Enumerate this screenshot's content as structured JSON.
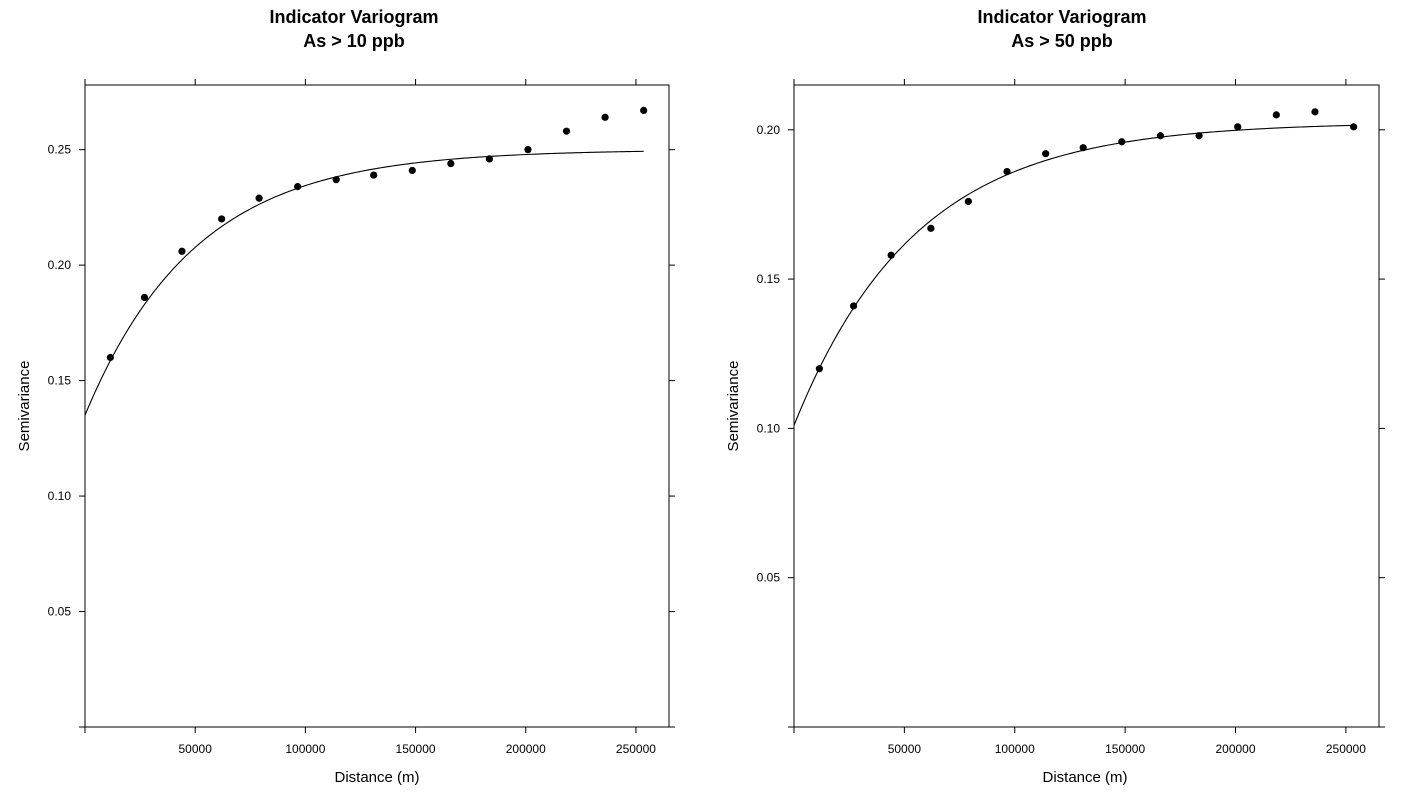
{
  "chart_data": [
    {
      "type": "scatter",
      "title": [
        "Indicator Variogram",
        "As > 10 ppb"
      ],
      "xlabel": "Distance (m)",
      "ylabel": "Semivariance",
      "xlim": [
        0,
        265000
      ],
      "ylim": [
        0,
        0.278
      ],
      "xticks": [
        50000,
        100000,
        150000,
        200000,
        250000
      ],
      "xtick_labels": [
        "50000",
        "100000",
        "150000",
        "200000",
        "250000"
      ],
      "yticks": [
        0.05,
        0.1,
        0.15,
        0.2,
        0.25
      ],
      "ytick_labels": [
        "0.05",
        "0.10",
        "0.15",
        "0.20",
        "0.25"
      ],
      "points": {
        "x": [
          11500,
          27000,
          44000,
          62000,
          79000,
          96500,
          114000,
          131000,
          148500,
          166000,
          183500,
          201000,
          218500,
          236000,
          253500
        ],
        "y": [
          0.16,
          0.186,
          0.206,
          0.22,
          0.229,
          0.234,
          0.237,
          0.239,
          0.241,
          0.244,
          0.246,
          0.25,
          0.258,
          0.264,
          0.267
        ]
      },
      "model": {
        "type": "exponential",
        "nugget": 0.135,
        "sill": 0.25,
        "range": 50000,
        "xmax": 253500
      }
    },
    {
      "type": "scatter",
      "title": [
        "Indicator Variogram",
        "As > 50 ppb"
      ],
      "xlabel": "Distance (m)",
      "ylabel": "Semivariance",
      "xlim": [
        0,
        265000
      ],
      "ylim": [
        0,
        0.215
      ],
      "xticks": [
        50000,
        100000,
        150000,
        200000,
        250000
      ],
      "xtick_labels": [
        "50000",
        "100000",
        "150000",
        "200000",
        "250000"
      ],
      "yticks": [
        0.05,
        0.1,
        0.15,
        0.2
      ],
      "ytick_labels": [
        "0.05",
        "0.10",
        "0.15",
        "0.20"
      ],
      "points": {
        "x": [
          11500,
          27000,
          44000,
          62000,
          79000,
          96500,
          114000,
          131000,
          148500,
          166000,
          183500,
          201000,
          218500,
          236000,
          253500
        ],
        "y": [
          0.12,
          0.141,
          0.158,
          0.167,
          0.176,
          0.186,
          0.192,
          0.194,
          0.196,
          0.198,
          0.198,
          0.201,
          0.205,
          0.206,
          0.201
        ]
      },
      "model": {
        "type": "exponential",
        "nugget": 0.101,
        "sill": 0.2025,
        "range": 55000,
        "xmax": 253500
      }
    }
  ]
}
